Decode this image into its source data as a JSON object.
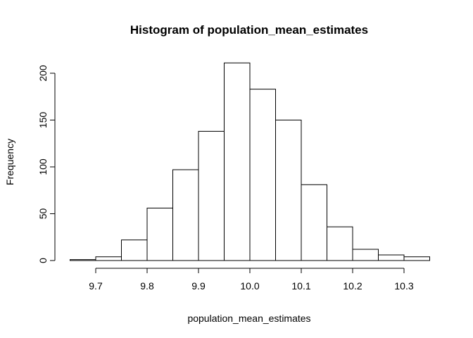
{
  "chart_data": {
    "type": "bar",
    "title": "Histogram of population_mean_estimates",
    "xlabel": "population_mean_estimates",
    "ylabel": "Frequency",
    "bins": [
      {
        "from": 9.65,
        "to": 9.7,
        "value": 1
      },
      {
        "from": 9.7,
        "to": 9.75,
        "value": 4
      },
      {
        "from": 9.75,
        "to": 9.8,
        "value": 22
      },
      {
        "from": 9.8,
        "to": 9.85,
        "value": 56
      },
      {
        "from": 9.85,
        "to": 9.9,
        "value": 97
      },
      {
        "from": 9.9,
        "to": 9.95,
        "value": 138
      },
      {
        "from": 9.95,
        "to": 10.0,
        "value": 211
      },
      {
        "from": 10.0,
        "to": 10.05,
        "value": 183
      },
      {
        "from": 10.05,
        "to": 10.1,
        "value": 150
      },
      {
        "from": 10.1,
        "to": 10.15,
        "value": 81
      },
      {
        "from": 10.15,
        "to": 10.2,
        "value": 36
      },
      {
        "from": 10.2,
        "to": 10.25,
        "value": 12
      },
      {
        "from": 10.25,
        "to": 10.3,
        "value": 6
      },
      {
        "from": 10.3,
        "to": 10.35,
        "value": 4
      }
    ],
    "xticks": [
      "9.7",
      "9.8",
      "9.9",
      "10.0",
      "10.1",
      "10.2",
      "10.3"
    ],
    "yticks": [
      "0",
      "50",
      "100",
      "150",
      "200"
    ],
    "xlim": [
      9.65,
      10.35
    ],
    "ylim": [
      0,
      211
    ],
    "grid": false,
    "bar_fill": "#ffffff",
    "bar_stroke": "#000000"
  }
}
